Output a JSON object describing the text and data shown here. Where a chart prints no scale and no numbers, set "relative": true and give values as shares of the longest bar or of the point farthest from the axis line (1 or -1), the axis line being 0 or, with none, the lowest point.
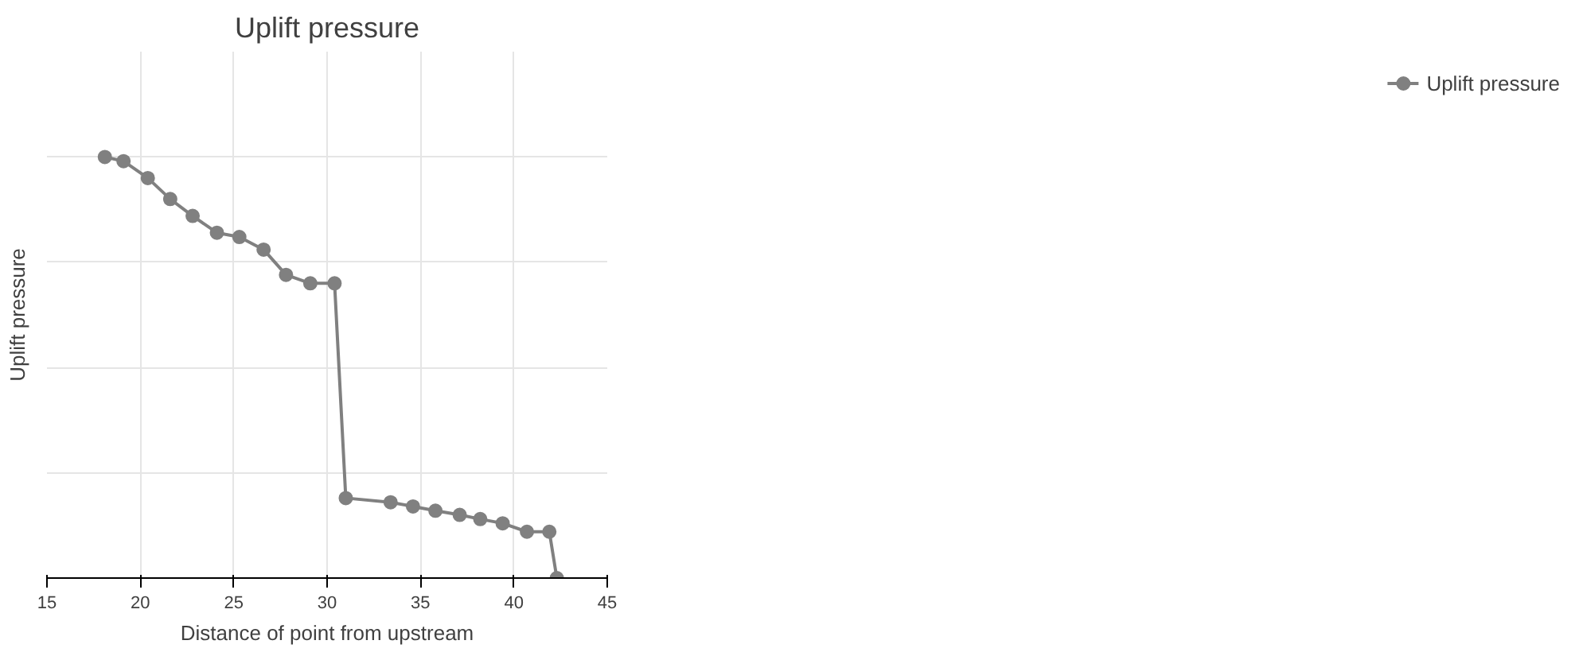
{
  "chart_data": {
    "type": "line",
    "title": "Uplift pressure",
    "xlabel": "Distance of point from upstream",
    "ylabel": "Uplift pressure",
    "relative": true,
    "xlim": [
      15,
      45
    ],
    "xticks": [
      15,
      20,
      25,
      30,
      35,
      40,
      45
    ],
    "series": [
      {
        "name": "Uplift pressure",
        "color": "#808080",
        "x": [
          18.1,
          19.1,
          20.4,
          21.6,
          22.8,
          24.1,
          25.3,
          26.6,
          27.8,
          29.1,
          30.4,
          31.0,
          33.4,
          34.6,
          35.8,
          37.1,
          38.2,
          39.4,
          40.7,
          41.9,
          42.3
        ],
        "values": [
          1.0,
          0.99,
          0.95,
          0.9,
          0.86,
          0.82,
          0.81,
          0.78,
          0.72,
          0.7,
          0.7,
          0.19,
          0.18,
          0.17,
          0.16,
          0.15,
          0.14,
          0.13,
          0.11,
          0.11,
          0.0
        ]
      }
    ],
    "grid": true,
    "legend": "right",
    "marker": "circle",
    "line_style": "solid"
  }
}
